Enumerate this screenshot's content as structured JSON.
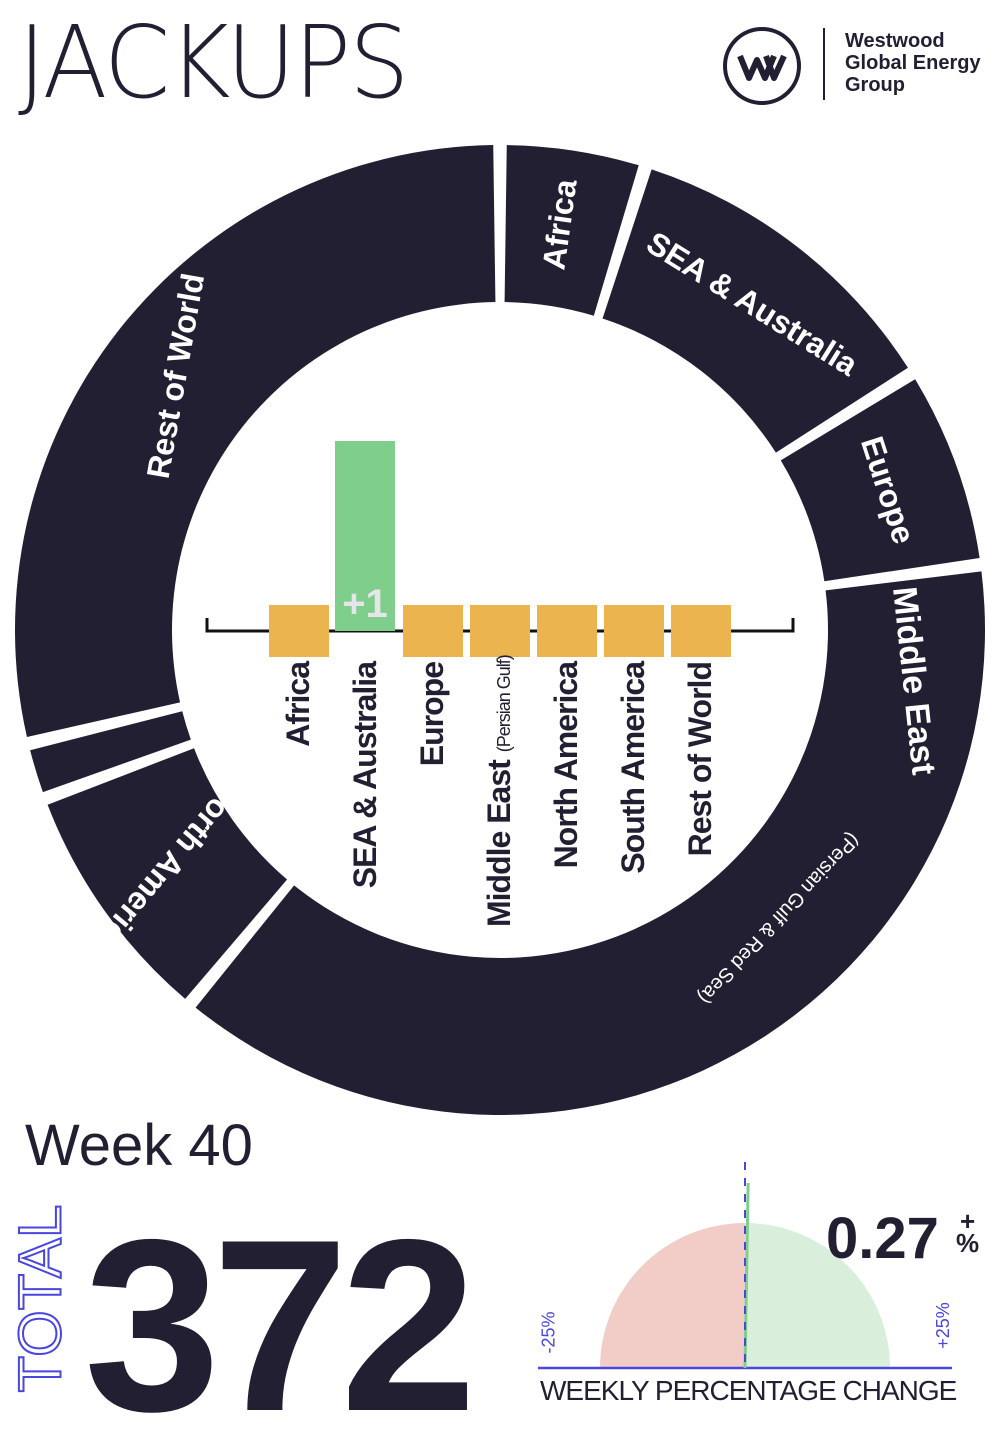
{
  "header": {
    "title": "JACKUPS",
    "logo": {
      "text_lines": [
        "Westwood",
        "Global Energy",
        "Group"
      ],
      "mark": "w"
    }
  },
  "chart_data": [
    {
      "type": "pie",
      "subtype": "donut",
      "total": 372,
      "categories": [
        "Africa",
        "SEA & Australia",
        "Europe",
        "Middle East",
        "North America",
        "South America",
        "Rest of World"
      ],
      "ring_labels": [
        "Africa",
        "SEA & Australia",
        "Europe",
        "Middle East",
        "North America",
        "",
        "Rest of World"
      ],
      "ring_sublabels": {
        "Middle East": "(Persian Gulf & Red Sea)"
      },
      "values": [
        18,
        42,
        25,
        142,
        31,
        7,
        107
      ],
      "color": "#221f33"
    },
    {
      "type": "bar",
      "categories": [
        "Africa",
        "SEA & Australia",
        "Europe",
        "Middle East",
        "North America",
        "South America",
        "Rest of World"
      ],
      "category_sublabels": {
        "Middle East": "(Persian Gulf)"
      },
      "values": [
        0,
        1,
        0,
        0,
        0,
        0,
        0
      ],
      "data_labels": [
        "",
        "+1",
        "",
        "",
        "",
        "",
        ""
      ],
      "colors": {
        "zero": "#ebb44f",
        "positive": "#80ce8c"
      }
    },
    {
      "type": "gauge",
      "value": 0.27,
      "value_label": "0.27",
      "sign": "+",
      "unit": "%",
      "range": [
        -25,
        25
      ],
      "range_labels": [
        "-25%",
        "+25%"
      ],
      "xlabel": "WEEKLY PERCENTAGE CHANGE",
      "colors": {
        "negative": "#f2cdc8",
        "positive": "#d9efdc",
        "needle": "#80ce8c",
        "axis": "#4a46e0"
      }
    }
  ],
  "summary": {
    "week": "Week 40",
    "total_label": "TOTAL",
    "total": "372"
  }
}
